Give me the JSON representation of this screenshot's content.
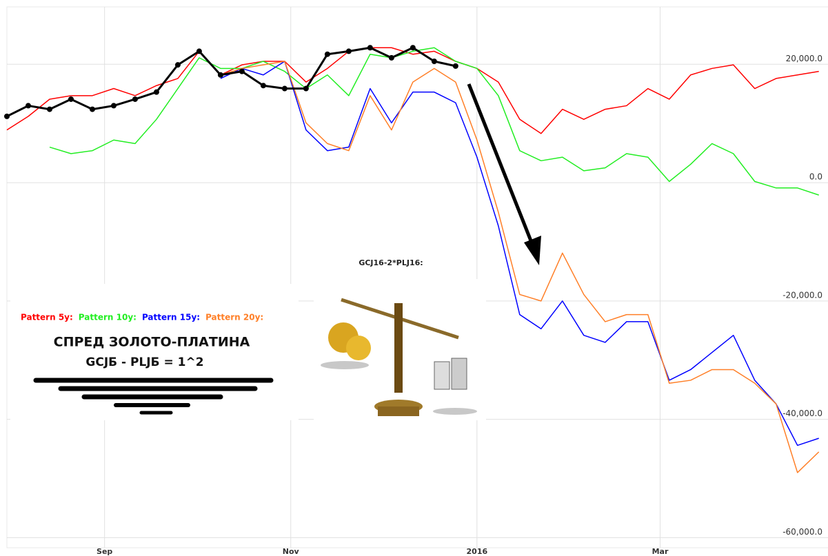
{
  "chart_data": {
    "type": "line",
    "title": "СПРЕД ЗОЛОТО-ПЛАТИНА",
    "subtitle": "GCJБ - PLJБ = 1^2",
    "annotation": "GCJ16-2*PLJ16:",
    "x": [
      -32,
      -25,
      -18,
      -11,
      -4,
      3,
      10,
      17,
      24,
      31,
      38,
      45,
      52,
      59,
      66,
      73,
      80,
      87,
      94,
      101,
      108,
      115,
      122,
      129,
      136,
      143,
      150,
      157,
      164,
      171,
      178,
      185,
      192,
      199,
      206,
      213,
      220,
      227,
      234
    ],
    "xlim": [
      -32,
      237
    ],
    "xticks": [
      {
        "value": 0,
        "label": "Sep"
      },
      {
        "value": 61,
        "label": "Nov"
      },
      {
        "value": 122,
        "label": "2016"
      },
      {
        "value": 182,
        "label": "Mar"
      }
    ],
    "ylim": [
      -61700,
      29700
    ],
    "yticks": [
      {
        "value": 20000,
        "label": "20,000.0"
      },
      {
        "value": 0,
        "label": "0.0"
      },
      {
        "value": -20000,
        "label": "-20,000.0"
      },
      {
        "value": -40000,
        "label": "-40,000.0"
      },
      {
        "value": -60000,
        "label": "-60,000.0"
      }
    ],
    "grid": true,
    "series": [
      {
        "name": "Pattern 5y:",
        "color": "#ff0000",
        "values": [
          8900,
          11200,
          14100,
          14700,
          14700,
          15900,
          14700,
          16400,
          17600,
          22200,
          18200,
          19900,
          20500,
          20500,
          17000,
          19300,
          22200,
          22800,
          22800,
          21700,
          22200,
          20500,
          19300,
          17000,
          10700,
          8300,
          12400,
          10700,
          12400,
          13000,
          15900,
          14100,
          18200,
          19300,
          19900,
          15900,
          17600,
          18200,
          18800
        ]
      },
      {
        "name": "Pattern 10y:",
        "color": "#22ee22",
        "values": [
          null,
          null,
          6000,
          4900,
          5400,
          7200,
          6600,
          10700,
          15900,
          21100,
          19300,
          19300,
          20500,
          18800,
          15900,
          18200,
          14700,
          21700,
          21100,
          22200,
          22800,
          20500,
          19300,
          14700,
          5400,
          3700,
          4300,
          2000,
          2500,
          4900,
          4300,
          200,
          3100,
          6600,
          4900,
          200,
          -900,
          -900,
          -2100
        ]
      },
      {
        "name": "Pattern 15y:",
        "color": "#0000ff",
        "values": [
          null,
          null,
          null,
          null,
          null,
          null,
          null,
          null,
          null,
          null,
          17600,
          19300,
          18200,
          20500,
          8900,
          5400,
          6000,
          15900,
          10100,
          15300,
          15300,
          13500,
          4300,
          -7300,
          -22300,
          -24700,
          -20000,
          -25800,
          -27000,
          -23500,
          -23500,
          -33400,
          -31600,
          -28700,
          -25800,
          -33400,
          -37400,
          -44400,
          -43200
        ]
      },
      {
        "name": "Pattern 20y:",
        "color": "#ff7f27",
        "values": [
          null,
          null,
          null,
          null,
          null,
          null,
          null,
          null,
          null,
          null,
          18200,
          19300,
          19900,
          20500,
          10100,
          6600,
          5400,
          14700,
          8900,
          17000,
          19300,
          17000,
          7200,
          -5000,
          -18900,
          -20000,
          -11900,
          -18900,
          -23500,
          -22300,
          -22300,
          -33900,
          -33400,
          -31600,
          -31600,
          -33900,
          -37400,
          -49000,
          -45500
        ]
      },
      {
        "color": "#000000",
        "markers": true,
        "values": [
          11200,
          13000,
          12400,
          14100,
          12400,
          13000,
          14100,
          15300,
          19900,
          22200,
          18200,
          18800,
          16400,
          15900,
          15900,
          21700,
          22200,
          22800,
          21100,
          22800,
          20500,
          19700,
          null,
          null,
          null,
          null,
          null,
          null,
          null,
          null,
          null,
          null,
          null,
          null,
          null,
          null,
          null,
          null,
          null
        ]
      }
    ]
  }
}
